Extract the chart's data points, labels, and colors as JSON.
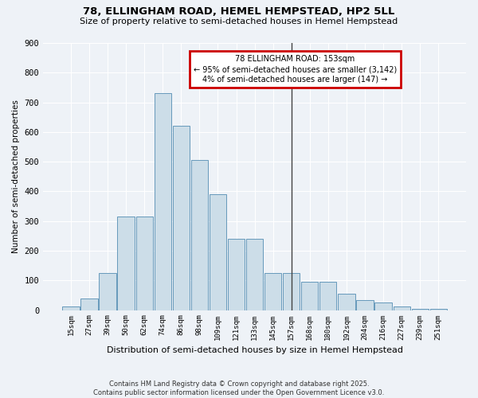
{
  "title1": "78, ELLINGHAM ROAD, HEMEL HEMPSTEAD, HP2 5LL",
  "title2": "Size of property relative to semi-detached houses in Hemel Hempstead",
  "xlabel": "Distribution of semi-detached houses by size in Hemel Hempstead",
  "ylabel": "Number of semi-detached properties",
  "footnote": "Contains HM Land Registry data © Crown copyright and database right 2025.\nContains public sector information licensed under the Open Government Licence v3.0.",
  "bin_labels": [
    "15sqm",
    "27sqm",
    "39sqm",
    "50sqm",
    "62sqm",
    "74sqm",
    "86sqm",
    "98sqm",
    "109sqm",
    "121sqm",
    "133sqm",
    "145sqm",
    "157sqm",
    "168sqm",
    "180sqm",
    "192sqm",
    "204sqm",
    "216sqm",
    "227sqm",
    "239sqm",
    "251sqm"
  ],
  "bar_heights": [
    12,
    40,
    125,
    315,
    315,
    730,
    620,
    505,
    390,
    240,
    240,
    125,
    125,
    95,
    95,
    55,
    35,
    25,
    12,
    5,
    3
  ],
  "bar_color": "#ccdde8",
  "bar_edge_color": "#6699bb",
  "property_bin_index": 12,
  "vline_color": "#444444",
  "annotation_text": "78 ELLINGHAM ROAD: 153sqm\n← 95% of semi-detached houses are smaller (3,142)\n4% of semi-detached houses are larger (147) →",
  "annotation_box_color": "#cc0000",
  "bg_color": "#eef2f7",
  "grid_color": "#ffffff",
  "ylim": [
    0,
    900
  ],
  "yticks": [
    0,
    100,
    200,
    300,
    400,
    500,
    600,
    700,
    800,
    900
  ]
}
